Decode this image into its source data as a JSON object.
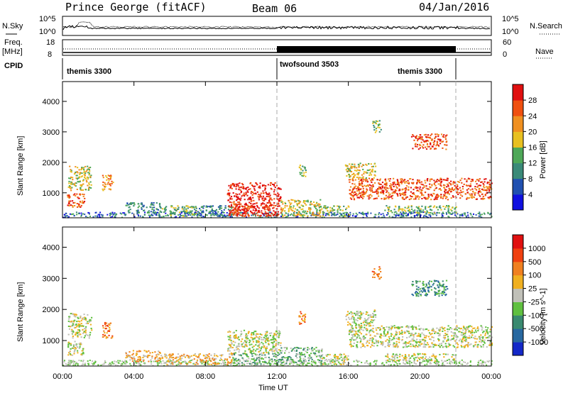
{
  "header": {
    "station": "Prince George (fitACF)",
    "beam": "Beam 06",
    "date": "04/Jan/2016"
  },
  "side_labels": {
    "nsky": "N.Sky",
    "freq": "Freq.",
    "freq_unit": "[MHz]",
    "cpid": "CPID",
    "nsearch": "N.Search",
    "nave": "Nave"
  },
  "strip_axes": {
    "nsky_left_ticks": [
      "10^5",
      "10^0"
    ],
    "nsky_right_ticks": [
      "10^5",
      "10^0"
    ],
    "freq_left_ticks": [
      "18",
      "8"
    ],
    "nave_right_ticks": [
      "60",
      "0"
    ]
  },
  "cpid_segments": [
    {
      "label": "themis 3300",
      "start_hour": 0,
      "end_hour": 12
    },
    {
      "label": "twofsound 3503",
      "start_hour": 12,
      "end_hour": 22
    },
    {
      "label": "themis 3300",
      "start_hour": 22,
      "end_hour": 24
    }
  ],
  "chart_data": [
    {
      "type": "heatmap",
      "name": "power",
      "xlabel": "",
      "ylabel": "Slant Range [km]",
      "x_ticks": [
        "00:00",
        "04:00",
        "08:00",
        "12:00",
        "16:00",
        "20:00",
        "00:00"
      ],
      "y_ticks": [
        "1000",
        "2000",
        "3000",
        "4000"
      ],
      "xlim_hours": [
        0,
        24
      ],
      "ylim_km": [
        180,
        4650
      ],
      "mode_boundaries_hours": [
        12,
        22
      ],
      "colorbar": {
        "label": "Power [dB]",
        "ticks": [
          "4",
          "8",
          "12",
          "16",
          "20",
          "24",
          "28"
        ],
        "colors": [
          "#1010e0",
          "#2050b0",
          "#3a8a78",
          "#4ea858",
          "#e8c020",
          "#f09020",
          "#f05010",
          "#e01010"
        ]
      },
      "regions": [
        {
          "t0": 0.2,
          "t1": 1.2,
          "r0": 550,
          "r1": 1000,
          "level": 6
        },
        {
          "t0": 0.3,
          "t1": 1.6,
          "r0": 1100,
          "r1": 1900,
          "level": 4
        },
        {
          "t0": 2.2,
          "t1": 2.8,
          "r0": 1100,
          "r1": 1600,
          "level": 5
        },
        {
          "t0": 3.5,
          "t1": 5.5,
          "r0": 350,
          "r1": 700,
          "level": 2
        },
        {
          "t0": 5.5,
          "t1": 7.5,
          "r0": 250,
          "r1": 600,
          "level": 3
        },
        {
          "t0": 7.5,
          "t1": 9.5,
          "r0": 250,
          "r1": 600,
          "level": 2
        },
        {
          "t0": 9.2,
          "t1": 12.2,
          "r0": 250,
          "r1": 1350,
          "level": 7
        },
        {
          "t0": 9.5,
          "t1": 10.5,
          "r0": 250,
          "r1": 700,
          "level": 6
        },
        {
          "t0": 12.2,
          "t1": 14.5,
          "r0": 250,
          "r1": 800,
          "level": 4
        },
        {
          "t0": 14.5,
          "t1": 16.0,
          "r0": 250,
          "r1": 600,
          "level": 3
        },
        {
          "t0": 13.2,
          "t1": 13.6,
          "r0": 1550,
          "r1": 1950,
          "level": 3
        },
        {
          "t0": 16.0,
          "t1": 24.0,
          "r0": 800,
          "r1": 1500,
          "level": 6
        },
        {
          "t0": 15.8,
          "t1": 17.5,
          "r0": 1500,
          "r1": 2000,
          "level": 4
        },
        {
          "t0": 17.3,
          "t1": 17.8,
          "r0": 3000,
          "r1": 3400,
          "level": 3
        },
        {
          "t0": 19.5,
          "t1": 21.5,
          "r0": 2450,
          "r1": 2950,
          "level": 6
        },
        {
          "t0": 18.0,
          "t1": 22.0,
          "r0": 350,
          "r1": 600,
          "level": 3
        }
      ]
    },
    {
      "type": "heatmap",
      "name": "velocity",
      "xlabel": "Time UT",
      "ylabel": "Slant Range [km]",
      "x_ticks": [
        "00:00",
        "04:00",
        "08:00",
        "12:00",
        "16:00",
        "20:00",
        "00:00"
      ],
      "y_ticks": [
        "1000",
        "2000",
        "3000",
        "4000"
      ],
      "xlim_hours": [
        0,
        24
      ],
      "ylim_km": [
        180,
        4650
      ],
      "mode_boundaries_hours": [
        12,
        22
      ],
      "colorbar": {
        "label": "Velocity [m s^-1]",
        "ticks": [
          "1000",
          "500",
          "100",
          "25",
          "-25",
          "-100",
          "-500",
          "-1000"
        ],
        "colors": [
          "#1428c8",
          "#2868a0",
          "#3a8a70",
          "#60c040",
          "#c0c0b8",
          "#f0b020",
          "#f08020",
          "#f04010",
          "#e01010"
        ]
      },
      "regions": [
        {
          "t0": 0.2,
          "t1": 1.2,
          "r0": 550,
          "r1": 1000,
          "level": 4
        },
        {
          "t0": 0.3,
          "t1": 1.6,
          "r0": 1100,
          "r1": 1900,
          "level": 4
        },
        {
          "t0": 2.2,
          "t1": 2.8,
          "r0": 1100,
          "r1": 1600,
          "level": 6
        },
        {
          "t0": 3.5,
          "t1": 5.5,
          "r0": 350,
          "r1": 700,
          "level": 5
        },
        {
          "t0": 5.5,
          "t1": 7.5,
          "r0": 250,
          "r1": 600,
          "level": 5
        },
        {
          "t0": 7.5,
          "t1": 9.5,
          "r0": 250,
          "r1": 600,
          "level": 5
        },
        {
          "t0": 9.2,
          "t1": 12.2,
          "r0": 600,
          "r1": 1350,
          "level": 4
        },
        {
          "t0": 9.5,
          "t1": 12.2,
          "r0": 250,
          "r1": 600,
          "level": 3
        },
        {
          "t0": 12.2,
          "t1": 14.5,
          "r0": 250,
          "r1": 800,
          "level": 3
        },
        {
          "t0": 14.5,
          "t1": 16.0,
          "r0": 250,
          "r1": 600,
          "level": 4
        },
        {
          "t0": 13.2,
          "t1": 13.6,
          "r0": 1550,
          "r1": 1950,
          "level": 6
        },
        {
          "t0": 16.0,
          "t1": 24.0,
          "r0": 800,
          "r1": 1500,
          "level": 4
        },
        {
          "t0": 15.8,
          "t1": 17.5,
          "r0": 1500,
          "r1": 2000,
          "level": 4
        },
        {
          "t0": 17.3,
          "t1": 17.8,
          "r0": 3000,
          "r1": 3400,
          "level": 6
        },
        {
          "t0": 19.5,
          "t1": 21.5,
          "r0": 2450,
          "r1": 2950,
          "level": 2
        },
        {
          "t0": 18.0,
          "t1": 22.0,
          "r0": 350,
          "r1": 600,
          "level": 4
        }
      ]
    }
  ]
}
